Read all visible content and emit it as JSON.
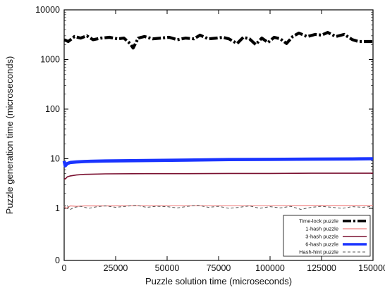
{
  "chart_data": {
    "type": "line",
    "title": "",
    "xlabel": "Puzzle solution time (microseconds)",
    "ylabel": "Puzzle generation time (microseconds)",
    "x_scale": "linear",
    "y_scale": "symlog",
    "xlim": [
      0,
      150000
    ],
    "ylim": [
      0,
      10000
    ],
    "x_ticks": [
      0,
      25000,
      50000,
      75000,
      100000,
      125000,
      150000
    ],
    "x_tick_labels": [
      "0",
      "25000",
      "50000",
      "75000",
      "100000",
      "125000",
      "150000"
    ],
    "y_ticks": [
      0,
      1,
      10,
      100,
      1000,
      10000
    ],
    "y_tick_labels": [
      "0",
      "1",
      "10",
      "100",
      "1000",
      "10000"
    ],
    "grid": false,
    "legend_position": "bottom-right",
    "series": [
      {
        "name": "Time-lock puzzle",
        "color": "#000000",
        "style": "dash-dot-thick",
        "x": [
          0,
          2000,
          5000,
          8000,
          11000,
          14000,
          18000,
          22000,
          26000,
          29000,
          32000,
          33500,
          36000,
          39000,
          43000,
          47000,
          51000,
          55000,
          59000,
          63000,
          66000,
          70000,
          74000,
          77000,
          80000,
          84000,
          87000,
          90000,
          93000,
          96000,
          99000,
          102000,
          105000,
          108000,
          111000,
          114000,
          118000,
          122000,
          125000,
          128000,
          132000,
          136000,
          140000,
          143000,
          146000,
          150000
        ],
        "values": [
          2500,
          2300,
          2900,
          2700,
          3000,
          2500,
          2700,
          2800,
          2600,
          2700,
          2100,
          1700,
          2700,
          2900,
          2600,
          2700,
          2800,
          2500,
          2700,
          2600,
          3100,
          2600,
          2700,
          2800,
          2600,
          2100,
          2800,
          2600,
          2000,
          2700,
          2200,
          2800,
          2600,
          2100,
          2900,
          3400,
          2900,
          3200,
          3100,
          3500,
          2900,
          3200,
          2500,
          2300,
          2300,
          2300
        ]
      },
      {
        "name": "1-hash puzzle",
        "color": "#f08080",
        "style": "solid-thin",
        "x": [
          0,
          1000,
          3000,
          6000,
          10000,
          20000,
          40000,
          60000,
          80000,
          100000,
          120000,
          140000,
          150000
        ],
        "values": [
          1.1,
          1.0,
          1.12,
          1.1,
          1.12,
          1.12,
          1.13,
          1.13,
          1.13,
          1.13,
          1.14,
          1.14,
          1.14
        ]
      },
      {
        "name": "3-hash puzzle",
        "color": "#7a1030",
        "style": "solid",
        "x": [
          0,
          500,
          1500,
          3000,
          6000,
          10000,
          20000,
          40000,
          60000,
          80000,
          100000,
          120000,
          140000,
          150000
        ],
        "values": [
          4.0,
          3.9,
          4.3,
          4.5,
          4.7,
          4.85,
          4.95,
          5.0,
          5.0,
          5.05,
          5.05,
          5.1,
          5.1,
          5.1
        ]
      },
      {
        "name": "6-hash puzzle",
        "color": "#1a34ff",
        "style": "solid-thick",
        "x": [
          0,
          500,
          1500,
          3000,
          6000,
          10000,
          20000,
          40000,
          60000,
          80000,
          100000,
          120000,
          140000,
          150000
        ],
        "values": [
          9.0,
          7.2,
          8.0,
          8.4,
          8.6,
          8.8,
          9.0,
          9.2,
          9.4,
          9.6,
          9.7,
          9.8,
          9.9,
          10.0
        ]
      },
      {
        "name": "Hash-hint puzzle",
        "color": "#555555",
        "style": "dashed",
        "x": [
          0,
          1000,
          3000,
          5000,
          8000,
          12000,
          16000,
          20000,
          25000,
          30000,
          35000,
          40000,
          45000,
          50000,
          55000,
          60000,
          65000,
          70000,
          75000,
          80000,
          85000,
          90000,
          95000,
          100000,
          105000,
          110000,
          115000,
          120000,
          125000,
          130000,
          135000,
          140000,
          145000,
          150000
        ],
        "values": [
          1.05,
          1.2,
          0.98,
          1.05,
          1.1,
          1.0,
          1.08,
          1.12,
          1.05,
          1.1,
          1.15,
          1.05,
          1.1,
          1.08,
          1.02,
          1.1,
          1.15,
          1.05,
          1.1,
          1.0,
          1.05,
          1.12,
          1.0,
          1.08,
          1.02,
          1.1,
          0.98,
          1.05,
          1.1,
          1.05,
          1.0,
          1.08,
          1.05,
          1.1
        ]
      }
    ]
  }
}
